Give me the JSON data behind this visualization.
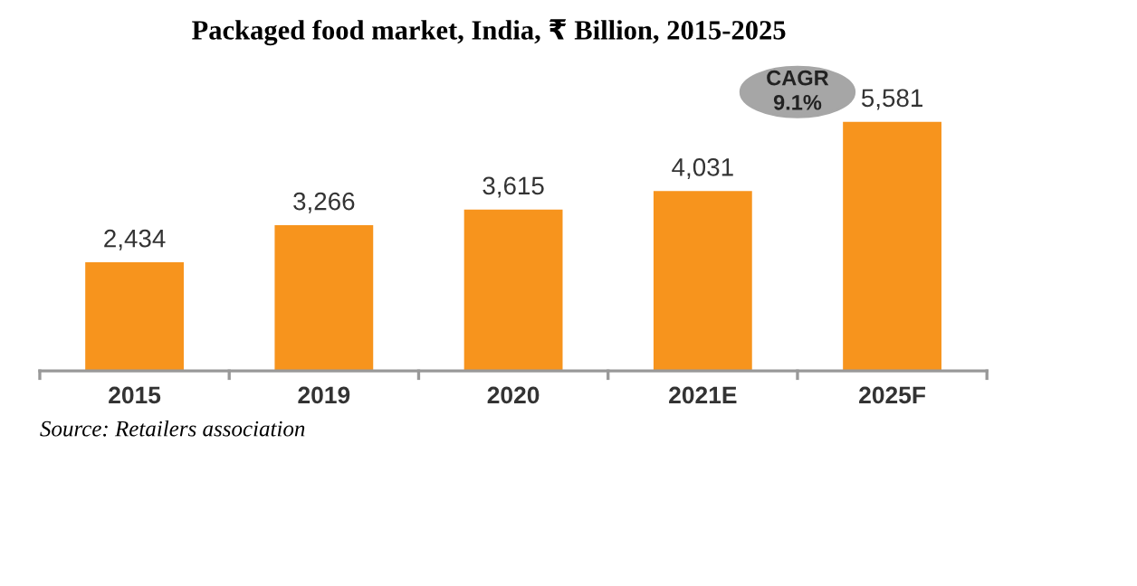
{
  "chart_data": {
    "type": "bar",
    "title": "Packaged food market, India, ₹ Billion, 2015-2025",
    "categories": [
      "2015",
      "2019",
      "2020",
      "2021E",
      "2025F"
    ],
    "values": [
      2434,
      3266,
      3615,
      4031,
      5581
    ],
    "value_labels": [
      "2,434",
      "3,266",
      "3,615",
      "4,031",
      "5,581"
    ],
    "color": "#f7941d",
    "grid": false,
    "legend": false,
    "annotations": [
      "CAGR\n9.1%",
      "Source: Retailers association"
    ]
  }
}
